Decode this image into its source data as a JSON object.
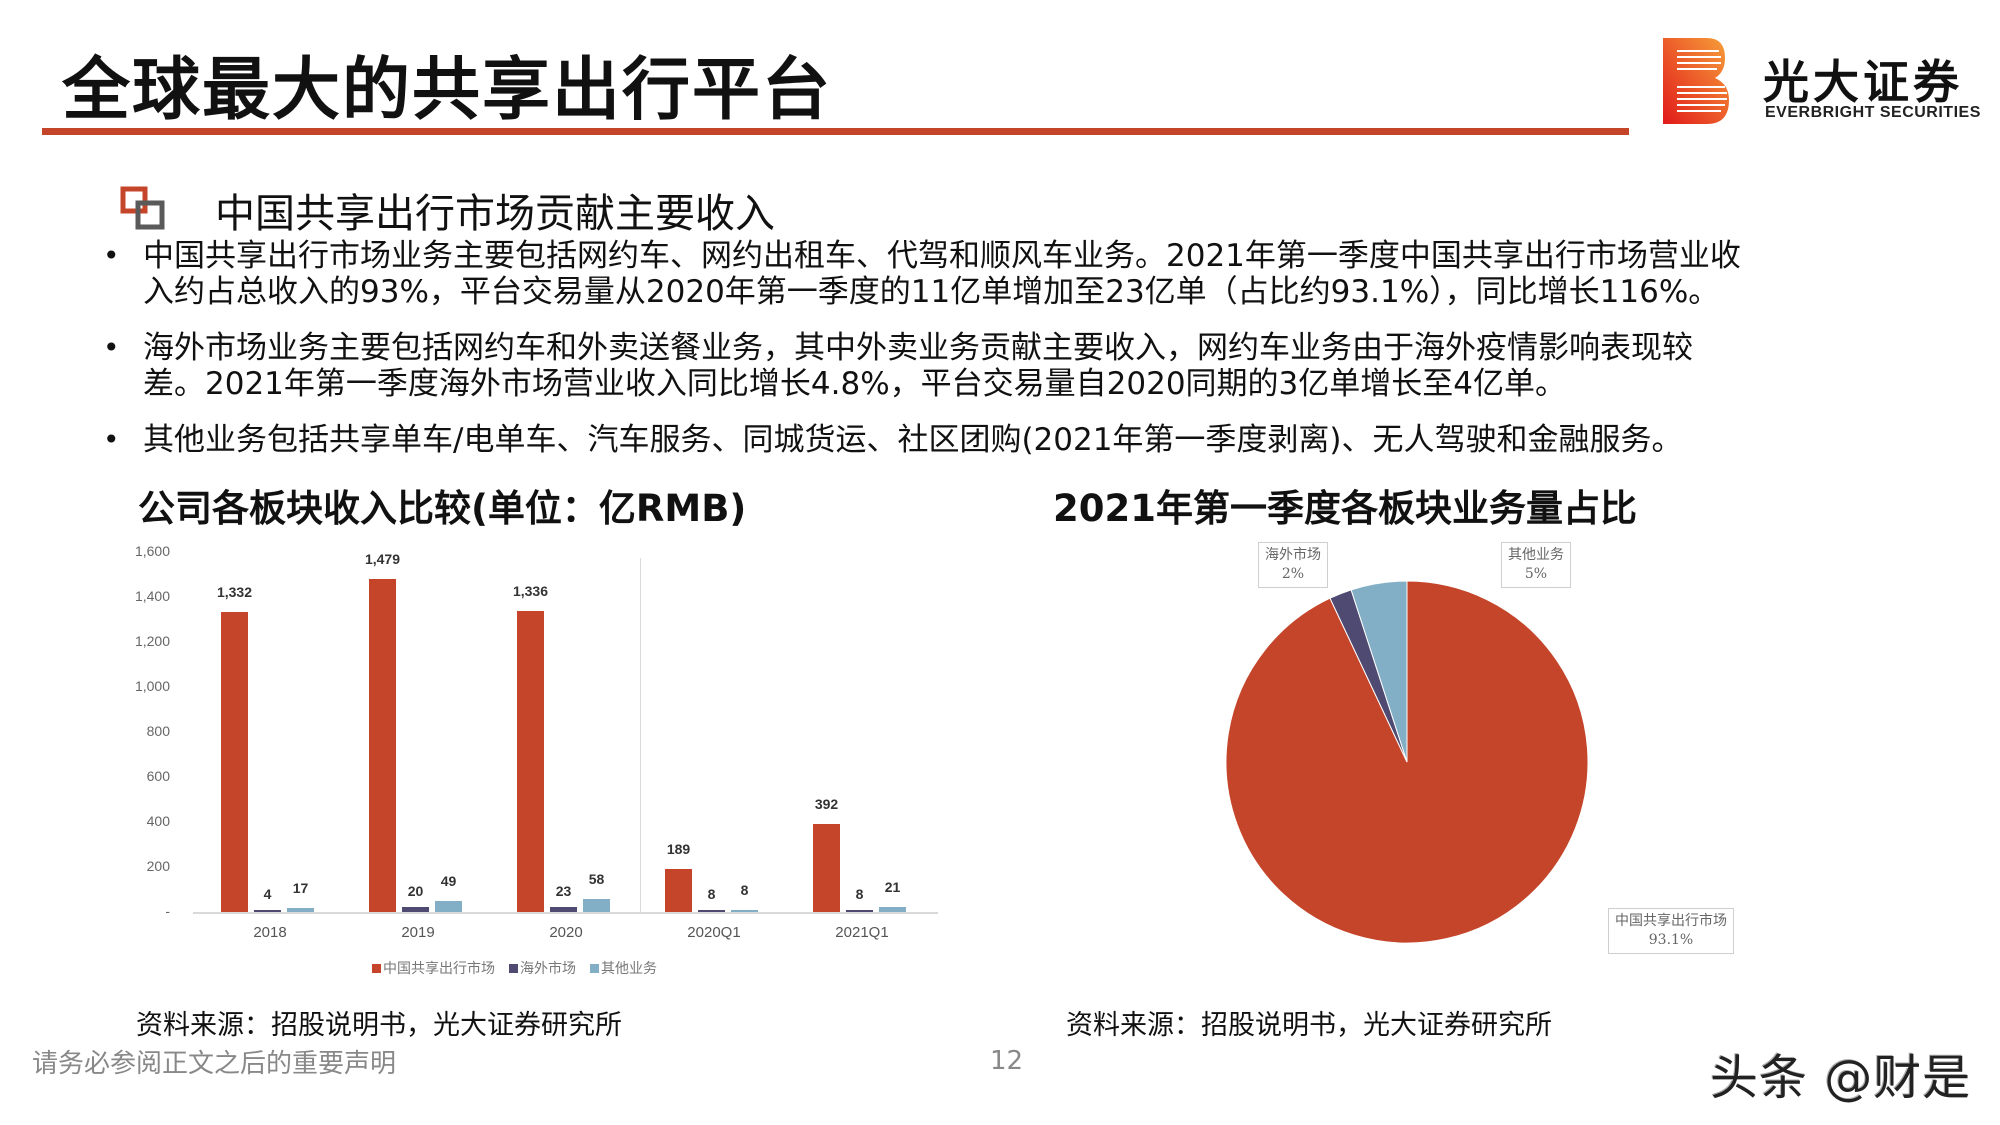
{
  "header": {
    "title": "全球最大的共享出行平台",
    "accent_color": "#c5452a"
  },
  "logo": {
    "icon": "everbright-b-logo-icon",
    "name_cn": "光大证券",
    "name_en": "EVERBRIGHT SECURITIES"
  },
  "section": {
    "icon": "overlapping-squares-icon",
    "heading": "中国共享出行市场贡献主要收入"
  },
  "bullets": [
    {
      "marker": "•",
      "lines": [
        "中国共享出行市场业务主要包括网约车、网约出租车、代驾和顺风车业务。2021年第一季度中国共享出行市场营业收",
        "入约占总收入的93%，平台交易量从2020年第一季度的11亿单增加至23亿单（占比约93.1%），同比增长116%。"
      ]
    },
    {
      "marker": "•",
      "lines": [
        "海外市场业务主要包括网约车和外卖送餐业务，其中外卖业务贡献主要收入，网约车业务由于海外疫情影响表现较",
        "差。2021年第一季度海外市场营业收入同比增长4.8%，平台交易量自2020同期的3亿单增长至4亿单。"
      ]
    },
    {
      "marker": "•",
      "lines": [
        "其他业务包括共享单车/电单车、汽车服务、同城货运、社区团购(2021年第一季度剥离)、无人驾驶和金融服务。"
      ]
    }
  ],
  "left_chart": {
    "title": "公司各板块收入比较(单位：亿RMB)",
    "source": "资料来源：招股说明书，光大证券研究所"
  },
  "right_chart": {
    "title": "2021年第一季度各板块业务量占比",
    "source": "资料来源：招股说明书，光大证券研究所"
  },
  "chart_data": [
    {
      "type": "bar",
      "title": "公司各板块收入比较(单位：亿RMB)",
      "xlabel": "",
      "ylabel": "",
      "ylim": [
        0,
        1600
      ],
      "y_ticks": [
        "1,600",
        "1,400",
        "1,200",
        "1,000",
        "800",
        "600",
        "400",
        "200",
        "-"
      ],
      "grid": false,
      "legend_position": "bottom",
      "categories": [
        "2018",
        "2019",
        "2020",
        "2020Q1",
        "2021Q1"
      ],
      "series": [
        {
          "name": "中国共享出行市场",
          "color": "#c5452a",
          "values": [
            1332,
            1479,
            1336,
            189,
            392
          ],
          "labels": [
            "1,332",
            "1,479",
            "1,336",
            "189",
            "392"
          ]
        },
        {
          "name": "海外市场",
          "color": "#4f4a72",
          "values": [
            4,
            20,
            23,
            8,
            8
          ],
          "labels": [
            "4",
            "20",
            "23",
            "8",
            "8"
          ]
        },
        {
          "name": "其他业务",
          "color": "#82afc5",
          "values": [
            17,
            49,
            58,
            8,
            21
          ],
          "labels": [
            "17",
            "49",
            "58",
            "8",
            "21"
          ]
        }
      ]
    },
    {
      "type": "pie",
      "title": "2021年第一季度各板块业务量占比",
      "slices": [
        {
          "name": "中国共享出行市场",
          "value": 93.1,
          "label": "93.1%",
          "color": "#c5452a"
        },
        {
          "name": "海外市场",
          "value": 2,
          "label": "2%",
          "color": "#4f4a72"
        },
        {
          "name": "其他业务",
          "value": 5,
          "label": "5%",
          "color": "#82afc5"
        }
      ]
    }
  ],
  "footer": {
    "disclaimer": "请务必参阅正文之后的重要声明",
    "page_number": "12",
    "watermark": "头条 @财是"
  }
}
